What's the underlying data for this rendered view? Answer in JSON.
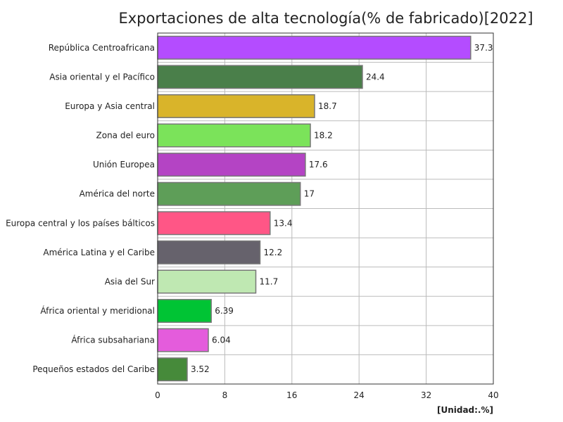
{
  "chart_data": {
    "type": "bar",
    "orientation": "horizontal",
    "title": "Exportaciones de alta tecnología(% de fabricado)[2022]",
    "unit": "[Unidad:.%]",
    "categories": [
      "República Centroafricana",
      "Asia oriental y el Pacífico",
      "Europa y Asia central",
      "Zona del euro",
      "Unión Europea",
      "América del norte",
      "Europa central y los países bálticos",
      "América Latina y el Caribe",
      "Asia del Sur",
      "África oriental y meridional",
      "África subsahariana",
      "Pequeños estados del Caribe"
    ],
    "values": [
      37.3,
      24.4,
      18.7,
      18.2,
      17.6,
      17,
      13.4,
      12.2,
      11.7,
      6.39,
      6.04,
      3.52
    ],
    "value_labels": [
      "37.3",
      "24.4",
      "18.7",
      "18.2",
      "17.6",
      "17",
      "13.4",
      "12.2",
      "11.7",
      "6.39",
      "6.04",
      "3.52"
    ],
    "colors": [
      "#b44cff",
      "#4a7f4a",
      "#d9b42a",
      "#7be35a",
      "#b444c4",
      "#5e9e58",
      "#ff5686",
      "#66626c",
      "#bfe8b2",
      "#00c434",
      "#e45cdc",
      "#468a3a"
    ],
    "xlim": [
      0,
      40
    ],
    "xticks": [
      "0",
      "8",
      "16",
      "24",
      "32",
      "40"
    ],
    "grid": true,
    "legend": "none"
  }
}
